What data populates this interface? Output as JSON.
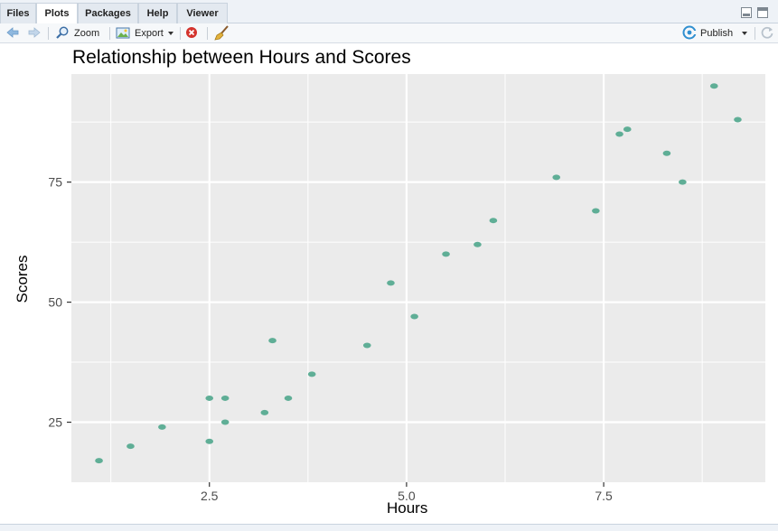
{
  "tabs": [
    {
      "label": "Files"
    },
    {
      "label": "Plots"
    },
    {
      "label": "Packages"
    },
    {
      "label": "Help"
    },
    {
      "label": "Viewer"
    }
  ],
  "active_tab": "Plots",
  "toolbar": {
    "zoom_label": "Zoom",
    "export_label": "Export",
    "publish_label": "Publish"
  },
  "colors": {
    "panel_background": "#ebebeb",
    "gridline": "#ffffff",
    "point": "#5fae96",
    "accent": "#2f8fd0"
  },
  "chart_data": {
    "type": "scatter",
    "title": "Relationship between Hours and Scores",
    "xlabel": "Hours",
    "ylabel": "Scores",
    "xlim": [
      0.75,
      9.55
    ],
    "ylim": [
      12.5,
      97.5
    ],
    "x_ticks": [
      2.5,
      5.0,
      7.5
    ],
    "x_tick_labels": [
      "2.5",
      "5.0",
      "7.5"
    ],
    "y_ticks": [
      25,
      50,
      75
    ],
    "y_tick_labels": [
      "25",
      "50",
      "75"
    ],
    "grid": true,
    "legend": "none",
    "points": [
      {
        "x": 1.1,
        "y": 17
      },
      {
        "x": 1.5,
        "y": 20
      },
      {
        "x": 1.9,
        "y": 24
      },
      {
        "x": 2.5,
        "y": 21
      },
      {
        "x": 2.5,
        "y": 30
      },
      {
        "x": 2.7,
        "y": 25
      },
      {
        "x": 2.7,
        "y": 30
      },
      {
        "x": 3.2,
        "y": 27
      },
      {
        "x": 3.3,
        "y": 42
      },
      {
        "x": 3.5,
        "y": 30
      },
      {
        "x": 3.8,
        "y": 35
      },
      {
        "x": 4.5,
        "y": 41
      },
      {
        "x": 4.8,
        "y": 54
      },
      {
        "x": 5.1,
        "y": 47
      },
      {
        "x": 5.5,
        "y": 60
      },
      {
        "x": 5.9,
        "y": 62
      },
      {
        "x": 6.1,
        "y": 67
      },
      {
        "x": 6.9,
        "y": 76
      },
      {
        "x": 7.4,
        "y": 69
      },
      {
        "x": 7.7,
        "y": 85
      },
      {
        "x": 7.8,
        "y": 86
      },
      {
        "x": 8.3,
        "y": 81
      },
      {
        "x": 8.5,
        "y": 75
      },
      {
        "x": 8.9,
        "y": 95
      },
      {
        "x": 9.2,
        "y": 88
      }
    ]
  }
}
